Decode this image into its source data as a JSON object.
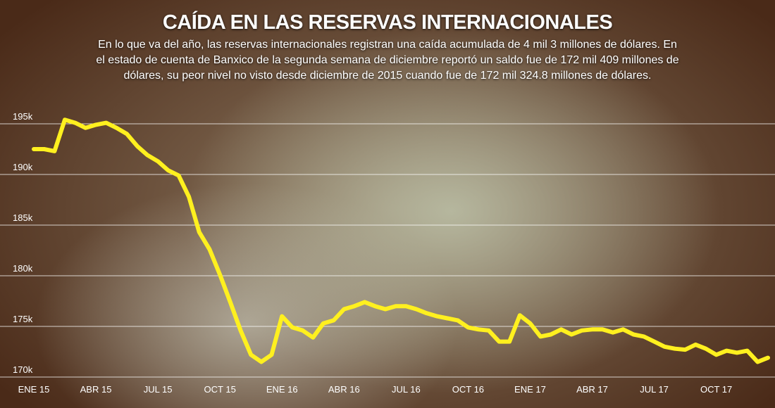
{
  "chart_data": {
    "type": "line",
    "title": "CAÍDA EN LAS RESERVAS INTERNACIONALES",
    "subtitle": "En lo que va del año, las reservas internacionales registran una caída acumulada de 4 mil 3 millones de dólares. En el estado de cuenta de Banxico de la segunda semana de diciembre reportó un saldo fue de 172 mil 409 millones de dólares, su peor nivel no visto desde diciembre de 2015 cuando fue de 172 mil 324.8 millones de dólares.",
    "categories": [
      "ENE 15",
      null,
      null,
      null,
      null,
      null,
      "ABR 15",
      null,
      null,
      null,
      null,
      null,
      "JUL 15",
      null,
      null,
      null,
      null,
      null,
      "OCT 15",
      null,
      null,
      null,
      null,
      null,
      "ENE 16",
      null,
      null,
      null,
      null,
      null,
      "ABR 16",
      null,
      null,
      null,
      null,
      null,
      "JUL 16",
      null,
      null,
      null,
      null,
      null,
      "OCT 16",
      null,
      null,
      null,
      null,
      null,
      "ENE 17",
      null,
      null,
      null,
      null,
      null,
      "ABR 17",
      null,
      null,
      null,
      null,
      null,
      "JUL 17",
      null,
      null,
      null,
      null,
      null,
      "OCT 17",
      null,
      null,
      null,
      null,
      null
    ],
    "series": [
      {
        "name": "Reservas internacionales",
        "color": "#fff01f",
        "values": [
          192.5,
          192.5,
          192.3,
          195.4,
          195.1,
          194.6,
          194.9,
          195.1,
          194.6,
          194.0,
          192.8,
          191.9,
          191.3,
          190.4,
          189.9,
          187.8,
          184.3,
          182.6,
          180.1,
          177.4,
          174.6,
          172.2,
          171.5,
          172.2,
          176.0,
          174.9,
          174.6,
          173.9,
          175.3,
          175.6,
          176.7,
          177.0,
          177.4,
          177.0,
          176.7,
          177.0,
          177.0,
          176.7,
          176.3,
          176.0,
          175.8,
          175.6,
          174.9,
          174.7,
          174.6,
          173.5,
          173.5,
          176.1,
          175.3,
          174.0,
          174.2,
          174.7,
          174.2,
          174.6,
          174.7,
          174.7,
          174.4,
          174.7,
          174.2,
          174.0,
          173.5,
          173.0,
          172.8,
          172.7,
          173.2,
          172.8,
          172.2,
          172.6,
          172.4,
          172.6,
          171.5,
          171.9
        ]
      }
    ],
    "ylim": [
      170,
      195
    ],
    "yticks": [
      {
        "value": 170,
        "label": "170k"
      },
      {
        "value": 175,
        "label": "175k"
      },
      {
        "value": 180,
        "label": "180k"
      },
      {
        "value": 185,
        "label": "185k"
      },
      {
        "value": 190,
        "label": "190k"
      },
      {
        "value": 195,
        "label": "195k"
      }
    ],
    "grid": true
  }
}
